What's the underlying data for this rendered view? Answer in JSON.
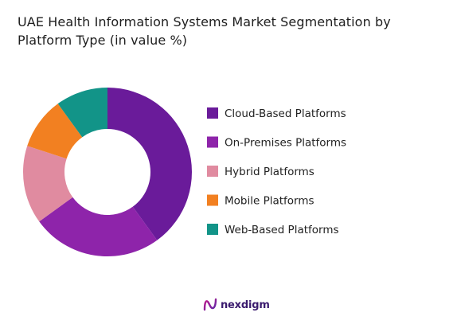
{
  "title": "UAE Health Information Systems  Market Segmentation by\nPlatform Type (in value %)",
  "chart_data": {
    "type": "pie",
    "donut": true,
    "title": "UAE Health Information Systems  Market Segmentation by Platform Type (in value %)",
    "legend_position": "right",
    "categories": [
      "Cloud-Based Platforms",
      "On-Premises Platforms",
      "Hybrid Platforms",
      "Mobile Platforms",
      "Web-Based Platforms"
    ],
    "values": [
      40,
      25,
      15,
      10,
      10
    ],
    "colors": [
      "#6A1B9A",
      "#8E24AA",
      "#E08BA0",
      "#F28021",
      "#129488"
    ]
  },
  "logo": {
    "text": "nexdigm",
    "icon": "nexdigm-logo-icon"
  }
}
